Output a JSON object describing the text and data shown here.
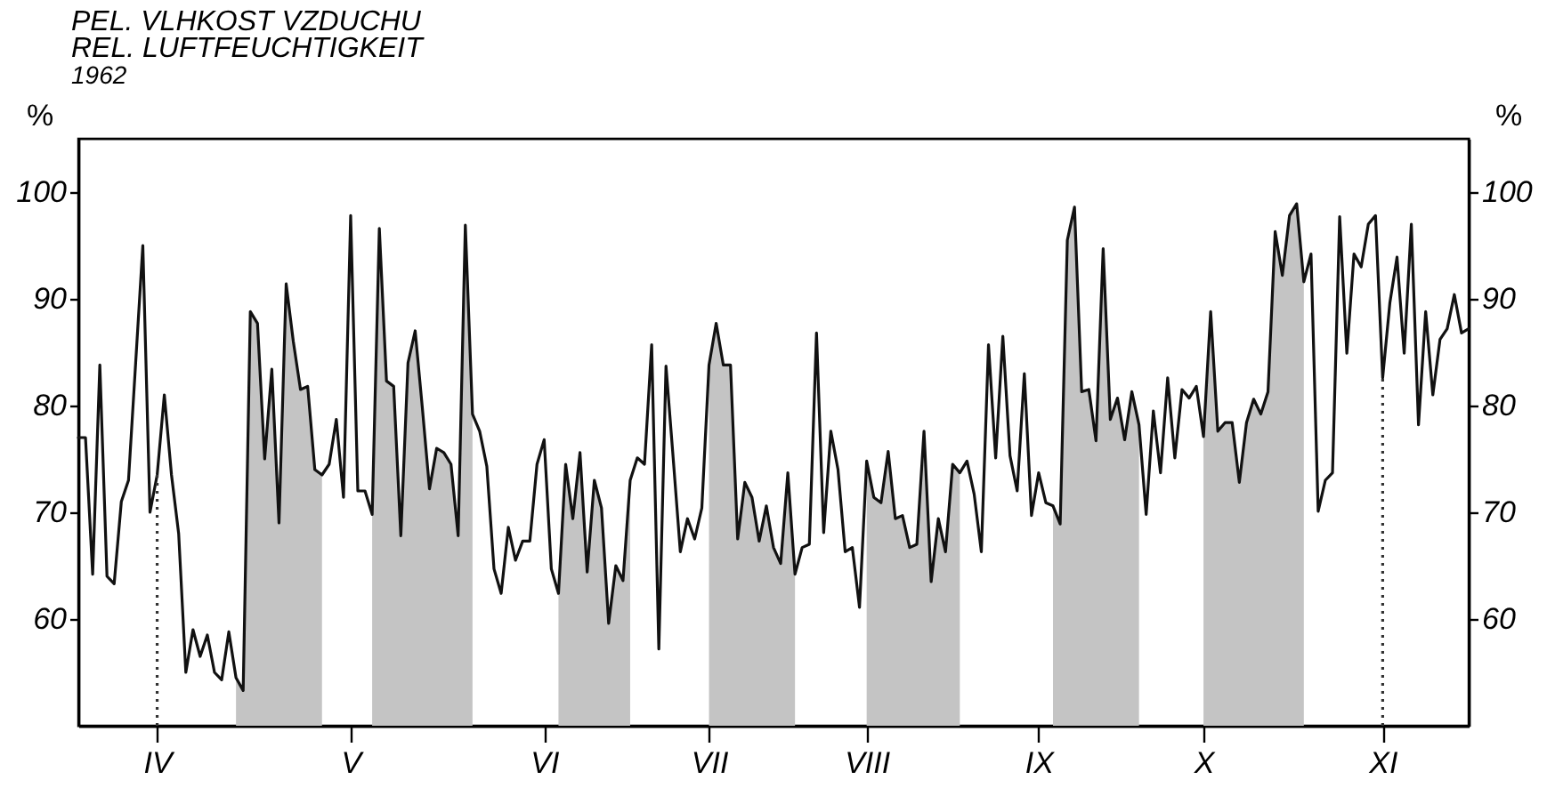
{
  "chart_data": {
    "type": "line",
    "title": "PEL. VLHKOST VZDUCHU\nREL. LUFTFEUCHTIGKEIT",
    "subtitle": "1962",
    "ylabel": "%",
    "y2label": "%",
    "categories": [
      null,
      null,
      null,
      null,
      null,
      null,
      null,
      null,
      null,
      null,
      null,
      "IV",
      null,
      null,
      null,
      null,
      null,
      null,
      null,
      null,
      null,
      null,
      null,
      null,
      null,
      null,
      null,
      null,
      null,
      null,
      null,
      null,
      null,
      null,
      null,
      null,
      null,
      null,
      "V",
      null,
      null,
      null,
      null,
      null,
      null,
      null,
      null,
      null,
      null,
      null,
      null,
      null,
      null,
      null,
      null,
      null,
      null,
      null,
      null,
      null,
      null,
      null,
      null,
      null,
      null,
      "VI",
      null,
      null,
      null,
      null,
      null,
      null,
      null,
      null,
      null,
      null,
      null,
      null,
      null,
      null,
      null,
      null,
      null,
      null,
      null,
      null,
      null,
      null,
      "VII",
      null,
      null,
      null,
      null,
      null,
      null,
      null,
      null,
      null,
      null,
      null,
      null,
      null,
      null,
      null,
      null,
      null,
      null,
      null,
      null,
      null,
      "VIII",
      null,
      null,
      null,
      null,
      null,
      null,
      null,
      null,
      null,
      null,
      null,
      null,
      null,
      null,
      null,
      null,
      null,
      null,
      null,
      null,
      null,
      null,
      null,
      "IX",
      null,
      null,
      null,
      null,
      null,
      null,
      null,
      null,
      null,
      null,
      null,
      null,
      null,
      null,
      null,
      null,
      null,
      null,
      null,
      null,
      null,
      null,
      "X",
      null,
      null,
      null,
      null,
      null,
      null,
      null,
      null,
      null,
      null,
      null,
      null,
      null,
      null,
      null,
      null,
      null,
      null,
      null,
      null,
      null,
      null,
      null,
      null,
      "XI",
      null,
      null,
      null,
      null,
      null,
      null,
      null,
      null,
      null,
      null,
      null,
      null
    ],
    "series": [
      {
        "type": "area",
        "color": "#c4c4c4",
        "values": [
          null,
          null,
          null,
          null,
          null,
          null,
          null,
          null,
          null,
          null,
          null,
          null,
          null,
          null,
          null,
          null,
          null,
          null,
          null,
          null,
          null,
          null,
          54.5,
          53.3,
          88.8,
          87.7,
          75,
          83.4,
          69,
          91.4,
          86,
          81.5,
          81.8,
          74,
          73.5,
          null,
          null,
          null,
          null,
          null,
          null,
          69.8,
          96.6,
          82.3,
          81.8,
          67.8,
          84,
          87,
          79.8,
          72.2,
          76,
          75.6,
          74.5,
          67.8,
          96.9,
          79.2,
          null,
          null,
          null,
          null,
          null,
          null,
          null,
          null,
          null,
          null,
          null,
          62.4,
          74.5,
          69.4,
          75.6,
          64.4,
          73,
          70.4,
          59.6,
          65,
          63.6,
          73,
          null,
          null,
          null,
          null,
          null,
          null,
          null,
          null,
          null,
          null,
          83.8,
          87.7,
          83.8,
          83.8,
          67.5,
          72.8,
          71.4,
          67.3,
          70.6,
          66.7,
          65.2,
          73.7,
          64.2,
          null,
          null,
          null,
          null,
          null,
          null,
          null,
          null,
          null,
          74.8,
          71.4,
          70.9,
          75.7,
          69.4,
          69.7,
          66.7,
          67,
          77.6,
          63.5,
          69.4,
          66.3,
          74.5,
          73.7,
          null,
          null,
          null,
          null,
          null,
          null,
          null,
          null,
          null,
          null,
          null,
          null,
          70.6,
          68.9,
          95.5,
          98.6,
          81.3,
          81.5,
          76.7,
          94.7,
          78.7,
          80.7,
          76.8,
          81.3,
          78.2,
          null,
          null,
          null,
          null,
          null,
          null,
          null,
          null,
          77.1,
          88.8,
          77.6,
          78.4,
          78.4,
          72.8,
          78.4,
          80.6,
          79.2,
          81.3,
          96.3,
          92.2,
          97.8,
          98.9,
          91.6,
          null,
          null,
          null,
          null,
          null,
          null,
          null,
          null,
          null,
          null,
          null,
          null,
          null,
          null,
          null,
          null,
          null,
          null,
          null,
          null,
          null,
          null,
          null
        ]
      },
      {
        "color": "#111111",
        "values": [
          77,
          77,
          64.2,
          83.8,
          64,
          63.3,
          71,
          73,
          84,
          95,
          70,
          73.5,
          81,
          73.5,
          68,
          55,
          59,
          56.5,
          58.5,
          55,
          54.3,
          58.8,
          54.5,
          53.3,
          88.8,
          87.7,
          75,
          83.4,
          69,
          91.4,
          86,
          81.5,
          81.8,
          74,
          73.5,
          74.5,
          78.7,
          71.4,
          97.8,
          72,
          72,
          69.8,
          96.6,
          82.3,
          81.8,
          67.8,
          84,
          87,
          79.8,
          72.2,
          76,
          75.6,
          74.5,
          67.8,
          96.9,
          79.2,
          77.6,
          74.3,
          64.7,
          62.4,
          68.6,
          65.5,
          67.3,
          67.3,
          74.5,
          76.8,
          64.7,
          62.4,
          74.5,
          69.4,
          75.6,
          64.4,
          73,
          70.4,
          59.6,
          65,
          63.6,
          73,
          75.1,
          74.5,
          85.7,
          57.2,
          83.7,
          75.1,
          66.3,
          69.4,
          67.5,
          70.4,
          83.8,
          87.7,
          83.8,
          83.8,
          67.5,
          72.8,
          71.4,
          67.3,
          70.6,
          66.7,
          65.2,
          73.7,
          64.2,
          66.7,
          67,
          86.8,
          68.1,
          77.6,
          74,
          66.3,
          66.7,
          61.1,
          74.8,
          71.4,
          70.9,
          75.7,
          69.4,
          69.7,
          66.7,
          67,
          77.6,
          63.5,
          69.4,
          66.3,
          74.5,
          73.7,
          74.8,
          71.7,
          66.3,
          85.7,
          75.1,
          86.5,
          75.3,
          72,
          83,
          69.7,
          73.7,
          70.9,
          70.6,
          68.9,
          95.5,
          98.6,
          81.3,
          81.5,
          76.7,
          94.7,
          78.7,
          80.7,
          76.8,
          81.3,
          78.2,
          69.8,
          79.5,
          73.7,
          82.6,
          75.1,
          81.5,
          80.7,
          81.8,
          77.1,
          88.8,
          77.6,
          78.4,
          78.4,
          72.8,
          78.4,
          80.6,
          79.2,
          81.3,
          96.3,
          92.2,
          97.8,
          98.9,
          91.6,
          94.2,
          70.1,
          73,
          73.7,
          97.7,
          84.9,
          94.2,
          93,
          97,
          97.8,
          82.6,
          89.6,
          93.9,
          84.9,
          97,
          78.2,
          88.8,
          81,
          86.2,
          87.2,
          90.4,
          86.8,
          87.2
        ]
      }
    ],
    "ylim": [
      50,
      105
    ],
    "yticks": [
      60,
      70,
      80,
      90,
      100
    ],
    "y2lim": [
      50,
      105
    ],
    "y2ticks": [
      60,
      70,
      80,
      90,
      100
    ],
    "ref_lines": [
      {
        "axis": "x",
        "value": "IV",
        "line_style": "dotted",
        "color": "#333333"
      },
      {
        "axis": "x",
        "value": "XI",
        "line_style": "dotted",
        "color": "#333333"
      }
    ]
  }
}
